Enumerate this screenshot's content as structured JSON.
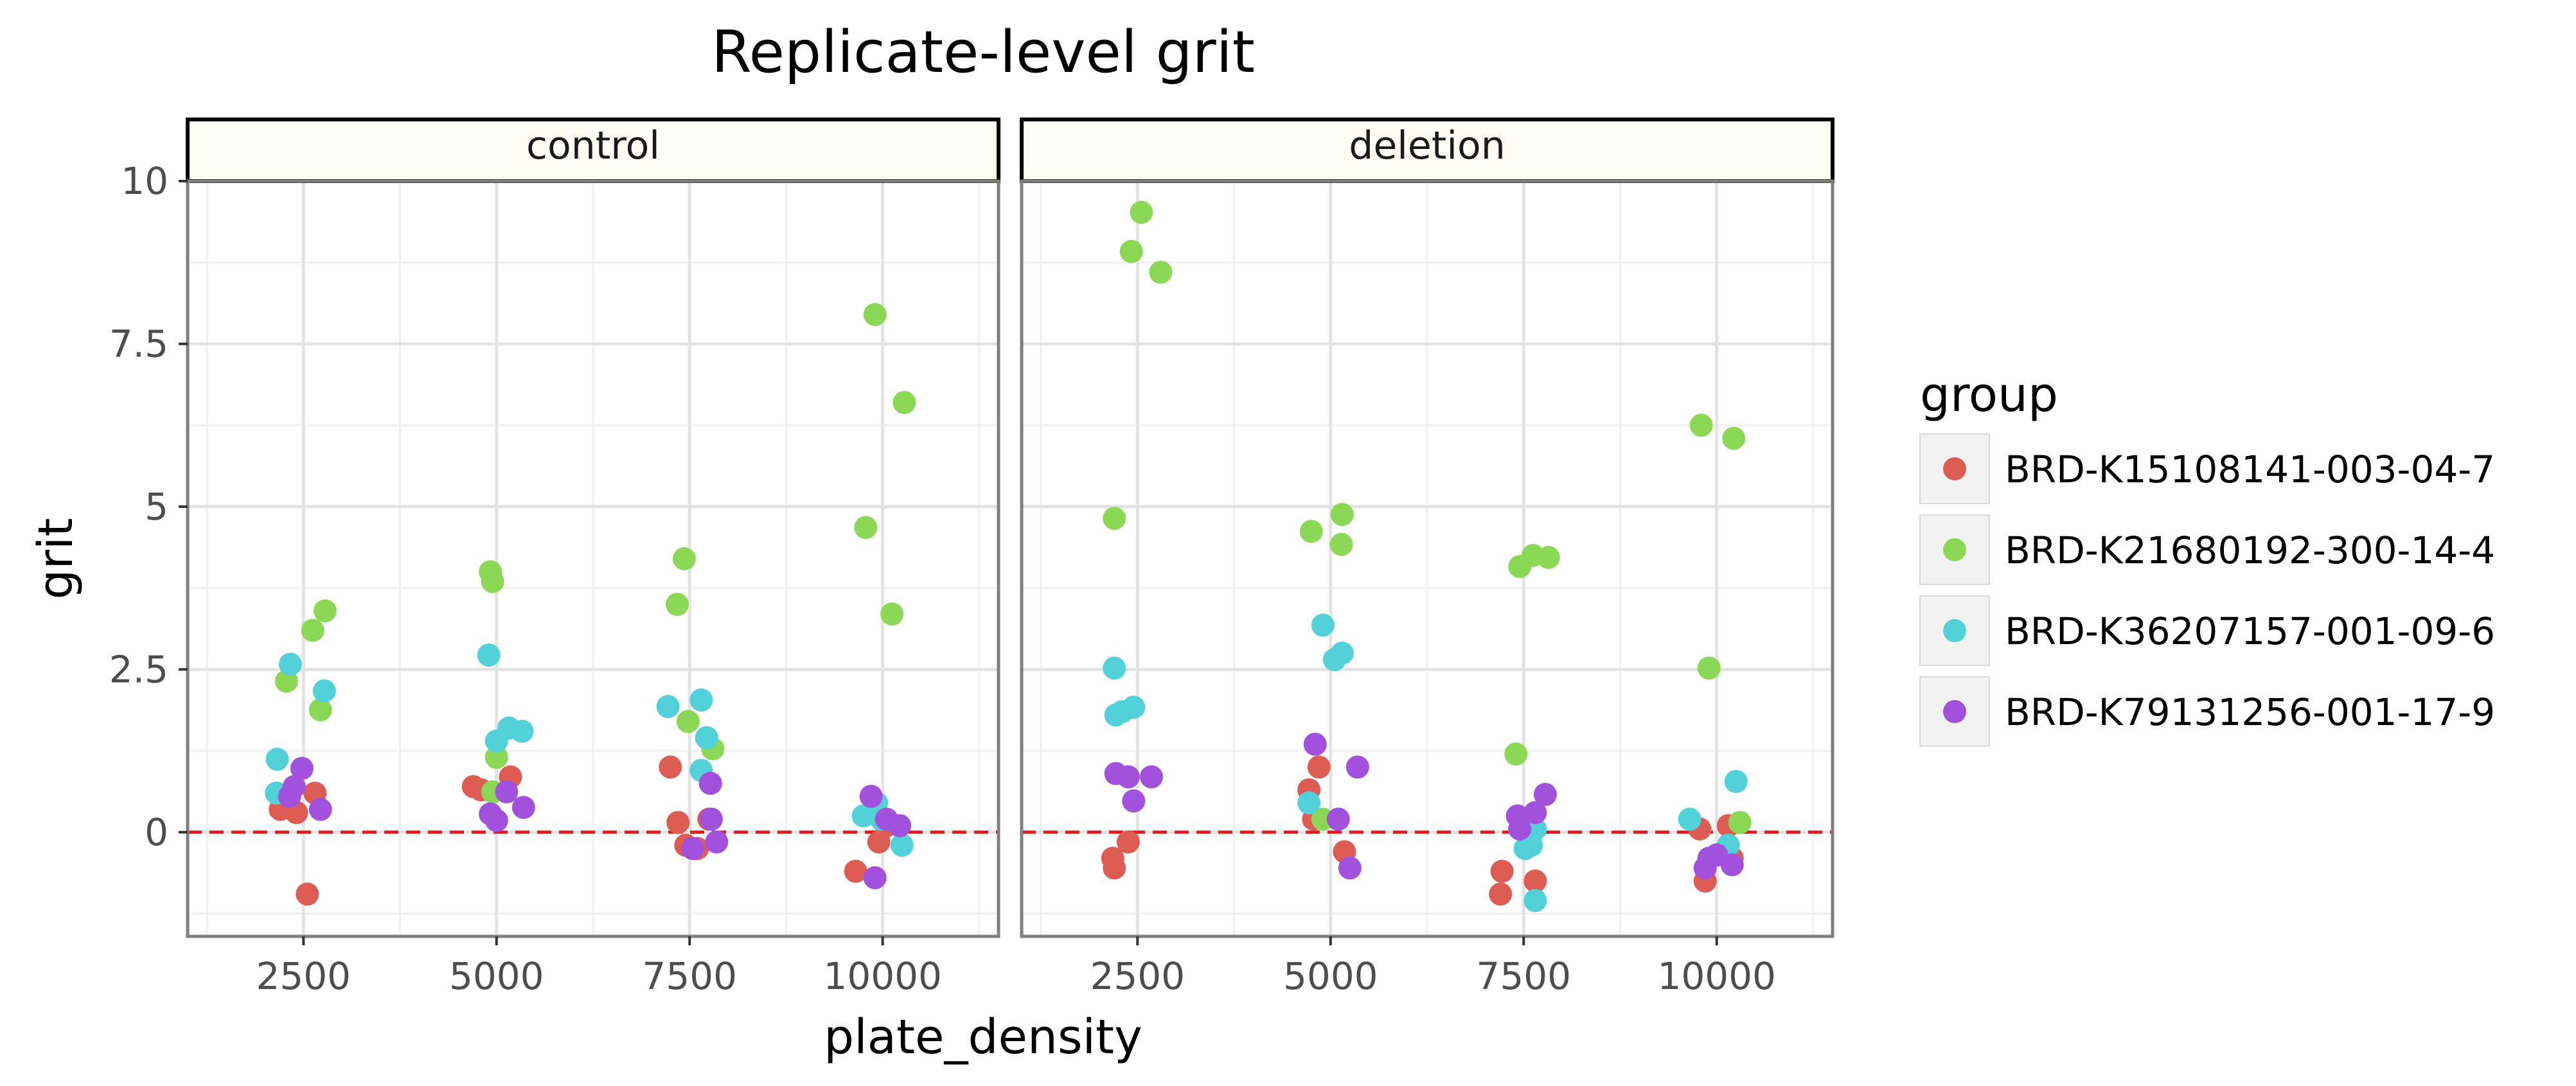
{
  "chart_data": {
    "type": "scatter",
    "title": "Replicate-level grit",
    "xlabel": "plate_density",
    "ylabel": "grit",
    "facets": [
      "control",
      "deletion"
    ],
    "xlim": [
      1000,
      11500
    ],
    "ylim": [
      -1.6,
      10.0
    ],
    "x_ticks": [
      2500,
      5000,
      7500,
      10000
    ],
    "y_ticks": [
      0,
      2.5,
      5,
      7.5,
      10
    ],
    "y_tick_labels": [
      "0",
      "2.5",
      "5",
      "7.5",
      "10"
    ],
    "reference_line": {
      "y": 0,
      "color": "#e41a1c",
      "style": "dashed"
    },
    "grid": true,
    "legend": {
      "title": "group",
      "position": "right"
    },
    "colors": {
      "BRD-K15108141-003-04-7": "#dd5d54",
      "BRD-K21680192-300-14-4": "#8bd856",
      "BRD-K36207157-001-09-6": "#52d1d8",
      "BRD-K79131256-001-17-9": "#a251dc"
    },
    "series": [
      {
        "name": "BRD-K15108141-003-04-7",
        "points": {
          "control": [
            [
              2200,
              0.35
            ],
            [
              2320,
              0.4
            ],
            [
              2410,
              0.3
            ],
            [
              2650,
              0.6
            ],
            [
              2550,
              -0.95
            ],
            [
              4700,
              0.7
            ],
            [
              4800,
              0.65
            ],
            [
              5180,
              0.85
            ],
            [
              7250,
              1.0
            ],
            [
              7350,
              0.15
            ],
            [
              7450,
              -0.2
            ],
            [
              7600,
              -0.25
            ],
            [
              7750,
              0.2
            ],
            [
              9650,
              -0.6
            ],
            [
              9950,
              -0.15
            ],
            [
              10050,
              0.1
            ]
          ],
          "deletion": [
            [
              2180,
              -0.4
            ],
            [
              2200,
              -0.55
            ],
            [
              2380,
              -0.15
            ],
            [
              4720,
              0.65
            ],
            [
              4780,
              0.2
            ],
            [
              4850,
              1.0
            ],
            [
              5180,
              -0.3
            ],
            [
              7220,
              -0.6
            ],
            [
              7200,
              -0.95
            ],
            [
              7650,
              -0.75
            ],
            [
              9780,
              0.05
            ],
            [
              9850,
              -0.75
            ],
            [
              10150,
              0.1
            ],
            [
              10200,
              -0.4
            ]
          ]
        }
      },
      {
        "name": "BRD-K21680192-300-14-4",
        "points": {
          "control": [
            [
              2280,
              2.32
            ],
            [
              2620,
              3.1
            ],
            [
              2780,
              3.4
            ],
            [
              2720,
              1.88
            ],
            [
              4920,
              4.0
            ],
            [
              4950,
              3.85
            ],
            [
              5000,
              1.15
            ],
            [
              4950,
              0.62
            ],
            [
              7340,
              3.5
            ],
            [
              7430,
              4.2
            ],
            [
              7480,
              1.7
            ],
            [
              7800,
              1.28
            ],
            [
              9780,
              4.68
            ],
            [
              9900,
              7.95
            ],
            [
              10120,
              3.35
            ],
            [
              10280,
              6.6
            ]
          ],
          "deletion": [
            [
              2200,
              4.82
            ],
            [
              2420,
              8.92
            ],
            [
              2550,
              9.52
            ],
            [
              2800,
              8.6
            ],
            [
              4750,
              4.62
            ],
            [
              5150,
              4.88
            ],
            [
              5140,
              4.42
            ],
            [
              4900,
              0.2
            ],
            [
              7400,
              1.2
            ],
            [
              7450,
              4.08
            ],
            [
              7620,
              4.25
            ],
            [
              7820,
              4.22
            ],
            [
              9800,
              6.25
            ],
            [
              9900,
              2.52
            ],
            [
              10220,
              6.05
            ],
            [
              10300,
              0.15
            ]
          ]
        }
      },
      {
        "name": "BRD-K36207157-001-09-6",
        "points": {
          "control": [
            [
              2160,
              1.12
            ],
            [
              2150,
              0.6
            ],
            [
              2330,
              2.58
            ],
            [
              2770,
              2.17
            ],
            [
              4900,
              2.72
            ],
            [
              5000,
              1.4
            ],
            [
              5160,
              1.6
            ],
            [
              5330,
              1.55
            ],
            [
              7220,
              1.93
            ],
            [
              7650,
              2.03
            ],
            [
              7720,
              1.45
            ],
            [
              7650,
              0.95
            ],
            [
              9750,
              0.25
            ],
            [
              9920,
              0.45
            ],
            [
              10250,
              -0.2
            ],
            [
              9980,
              0.2
            ]
          ],
          "deletion": [
            [
              2200,
              2.52
            ],
            [
              2220,
              1.8
            ],
            [
              2300,
              1.85
            ],
            [
              2450,
              1.92
            ],
            [
              4720,
              0.45
            ],
            [
              4900,
              3.18
            ],
            [
              5050,
              2.65
            ],
            [
              5150,
              2.75
            ],
            [
              7520,
              -0.25
            ],
            [
              7600,
              -0.2
            ],
            [
              7650,
              0.05
            ],
            [
              7650,
              -1.05
            ],
            [
              9650,
              0.2
            ],
            [
              10250,
              0.78
            ],
            [
              10150,
              -0.2
            ],
            [
              10000,
              -0.35
            ]
          ]
        }
      },
      {
        "name": "BRD-K79131256-001-17-9",
        "points": {
          "control": [
            [
              2320,
              0.55
            ],
            [
              2380,
              0.7
            ],
            [
              2480,
              0.98
            ],
            [
              2720,
              0.35
            ],
            [
              4920,
              0.28
            ],
            [
              5000,
              0.18
            ],
            [
              5130,
              0.62
            ],
            [
              5350,
              0.38
            ],
            [
              7540,
              -0.25
            ],
            [
              7770,
              0.75
            ],
            [
              7780,
              0.2
            ],
            [
              7850,
              -0.15
            ],
            [
              9850,
              0.55
            ],
            [
              9900,
              -0.7
            ],
            [
              10050,
              0.2
            ],
            [
              10220,
              0.1
            ]
          ],
          "deletion": [
            [
              2220,
              0.9
            ],
            [
              2380,
              0.85
            ],
            [
              2450,
              0.48
            ],
            [
              2680,
              0.85
            ],
            [
              4800,
              1.35
            ],
            [
              5100,
              0.2
            ],
            [
              5250,
              -0.55
            ],
            [
              5350,
              1.0
            ],
            [
              7420,
              0.25
            ],
            [
              7450,
              0.05
            ],
            [
              7650,
              0.3
            ],
            [
              7780,
              0.58
            ],
            [
              9850,
              -0.55
            ],
            [
              9900,
              -0.4
            ],
            [
              10000,
              -0.35
            ],
            [
              10200,
              -0.5
            ]
          ]
        }
      }
    ]
  }
}
